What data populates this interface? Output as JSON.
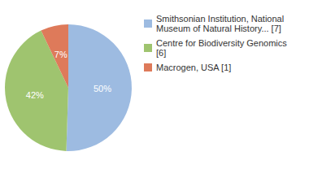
{
  "chart_data": {
    "type": "pie",
    "categories": [
      "Smithsonian Institution, National Museum of Natural History... [7]",
      "Centre for Biodiversity Genomics [6]",
      "Macrogen, USA [1]"
    ],
    "values": [
      50,
      42,
      7
    ],
    "value_labels": [
      "50%",
      "42%",
      "7%"
    ],
    "colors": [
      "#9dbbe1",
      "#9fc46f",
      "#de7a5a"
    ],
    "data_labels": true,
    "legend": "right"
  }
}
